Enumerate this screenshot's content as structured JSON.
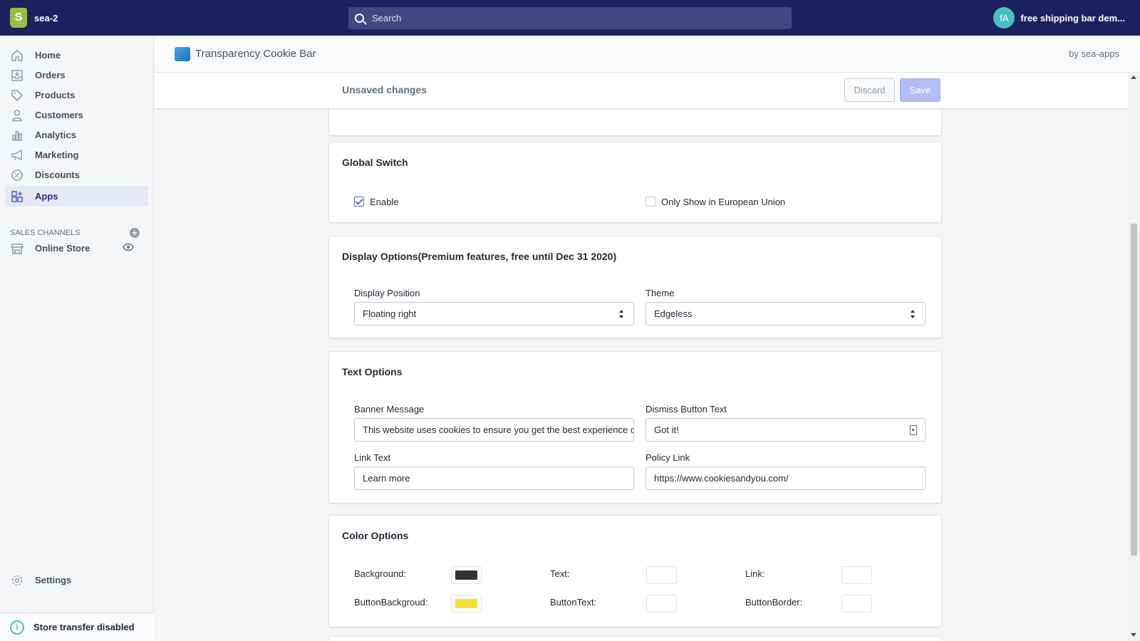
{
  "topbar": {
    "store_name": "sea-2",
    "search_placeholder": "Search",
    "avatar_initials": "fA",
    "account_name": "free shipping bar dem..."
  },
  "sidebar": {
    "items": [
      {
        "label": "Home",
        "icon": "home-icon"
      },
      {
        "label": "Orders",
        "icon": "orders-icon"
      },
      {
        "label": "Products",
        "icon": "tag-icon"
      },
      {
        "label": "Customers",
        "icon": "person-icon"
      },
      {
        "label": "Analytics",
        "icon": "bar-chart-icon"
      },
      {
        "label": "Marketing",
        "icon": "megaphone-icon"
      },
      {
        "label": "Discounts",
        "icon": "discount-icon"
      },
      {
        "label": "Apps",
        "icon": "apps-icon",
        "active": true
      }
    ],
    "sales_channels_heading": "SALES CHANNELS",
    "online_store": "Online Store",
    "settings": "Settings",
    "store_transfer": "Store transfer disabled"
  },
  "app_header": {
    "title": "Transparency Cookie Bar",
    "by": "by sea-apps"
  },
  "savebar": {
    "message": "Unsaved changes",
    "discard_label": "Discard",
    "save_label": "Save"
  },
  "global_switch": {
    "title": "Global Switch",
    "enable_label": "Enable",
    "enable_checked": true,
    "eu_label": "Only Show in European Union",
    "eu_checked": false
  },
  "display_options": {
    "title": "Display Options(Premium features, free until Dec 31 2020)",
    "position_label": "Display Position",
    "position_value": "Floating right",
    "theme_label": "Theme",
    "theme_value": "Edgeless"
  },
  "text_options": {
    "title": "Text Options",
    "banner_label": "Banner Message",
    "banner_value": "This website uses cookies to ensure you get the best experience on our website.",
    "dismiss_label": "Dismiss Button Text",
    "dismiss_value": "Got it!",
    "link_text_label": "Link Text",
    "link_text_value": "Learn more",
    "policy_label": "Policy Link",
    "policy_value": "https://www.cookiesandyou.com/"
  },
  "color_options": {
    "title": "Color Options",
    "background_label": "Background:",
    "background_color": "#333333",
    "text_label": "Text:",
    "text_color": "#ffffff",
    "link_label": "Link:",
    "link_color": "#ffffff",
    "button_background_label": "ButtonBackgroud:",
    "button_background_color": "#f7de38",
    "button_text_label": "ButtonText:",
    "button_text_color": "#ffffff",
    "button_border_label": "ButtonBorder:",
    "button_border_color": "#ffffff"
  },
  "colors": {
    "topbar": "#1c2260",
    "accent": "#5c6ac4"
  }
}
